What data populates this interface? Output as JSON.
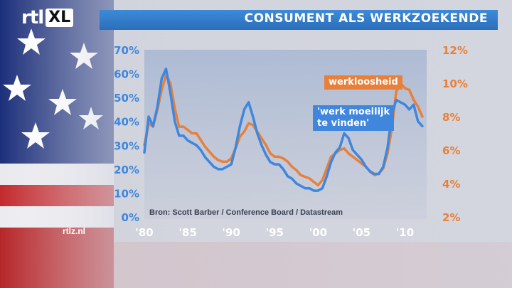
{
  "header": {
    "title": "CONSUMENT ALS WERKZOEKENDE"
  },
  "logo": {
    "rtl": "rtl",
    "xl": "XL"
  },
  "site": "rtlz.nl",
  "chart_data": {
    "type": "line",
    "source": "Bron: Scott Barber / Conference Board / Datastream",
    "x_ticks": [
      "'80",
      "'85",
      "'90",
      "'95",
      "'00",
      "'05",
      "'10"
    ],
    "x_tick_years": [
      1980,
      1985,
      1990,
      1995,
      2000,
      2005,
      2010
    ],
    "xlim": [
      1980,
      2012.5
    ],
    "left_ticks": [
      "0%",
      "10%",
      "20%",
      "30%",
      "40%",
      "50%",
      "60%",
      "70%"
    ],
    "right_ticks": [
      "2%",
      "4%",
      "6%",
      "8%",
      "10%",
      "12%"
    ],
    "ylim_left": [
      0,
      70
    ],
    "ylim_right": [
      2,
      12
    ],
    "grid": false,
    "colors": {
      "orange": "#e8803a",
      "blue": "#3f86dc"
    },
    "series": [
      {
        "name": "werkloosheid",
        "axis": "right",
        "color": "#e8803a",
        "x": [
          1980,
          1980.5,
          1981,
          1981.5,
          1982,
          1982.5,
          1983,
          1983.5,
          1984,
          1984.5,
          1985,
          1985.5,
          1986,
          1986.5,
          1987,
          1987.5,
          1988,
          1988.5,
          1989,
          1989.5,
          1990,
          1990.5,
          1991,
          1991.5,
          1992,
          1992.5,
          1993,
          1993.5,
          1994,
          1994.5,
          1995,
          1995.5,
          1996,
          1996.5,
          1997,
          1997.5,
          1998,
          1998.5,
          1999,
          1999.5,
          2000,
          2000.5,
          2001,
          2001.5,
          2002,
          2002.5,
          2003,
          2003.5,
          2004,
          2004.5,
          2005,
          2005.5,
          2006,
          2006.5,
          2007,
          2007.5,
          2008,
          2008.5,
          2009,
          2009.5,
          2010,
          2010.5,
          2011,
          2011.5,
          2012
        ],
        "values": [
          6.3,
          7.6,
          7.4,
          8.4,
          9.6,
          10.5,
          10.0,
          8.5,
          7.4,
          7.4,
          7.2,
          7.0,
          7.0,
          6.6,
          6.2,
          5.9,
          5.6,
          5.4,
          5.3,
          5.3,
          5.5,
          6.1,
          6.8,
          7.1,
          7.6,
          7.5,
          7.1,
          6.7,
          6.3,
          5.8,
          5.6,
          5.6,
          5.5,
          5.3,
          5.0,
          4.8,
          4.5,
          4.4,
          4.3,
          4.1,
          3.9,
          4.2,
          4.9,
          5.6,
          5.8,
          6.0,
          6.1,
          5.8,
          5.6,
          5.4,
          5.2,
          5.0,
          4.7,
          4.5,
          4.6,
          4.9,
          5.8,
          7.3,
          9.5,
          10.0,
          9.7,
          9.6,
          9.0,
          8.6,
          8.0
        ]
      },
      {
        "name": "'werk moeilijk\nte vinden'",
        "axis": "left",
        "color": "#3f86dc",
        "x": [
          1980,
          1980.5,
          1981,
          1981.5,
          1982,
          1982.5,
          1983,
          1983.5,
          1984,
          1984.5,
          1985,
          1985.5,
          1986,
          1986.5,
          1987,
          1987.5,
          1988,
          1988.5,
          1989,
          1989.5,
          1990,
          1990.5,
          1991,
          1991.5,
          1992,
          1992.5,
          1993,
          1993.5,
          1994,
          1994.5,
          1995,
          1995.5,
          1996,
          1996.5,
          1997,
          1997.5,
          1998,
          1998.5,
          1999,
          1999.5,
          2000,
          2000.5,
          2001,
          2001.5,
          2002,
          2002.5,
          2003,
          2003.5,
          2004,
          2004.5,
          2005,
          2005.5,
          2006,
          2006.5,
          2007,
          2007.5,
          2008,
          2008.5,
          2009,
          2009.5,
          2010,
          2010.5,
          2011,
          2011.5,
          2012
        ],
        "values": [
          27,
          42,
          38,
          46,
          58,
          62,
          52,
          40,
          34,
          34,
          32,
          31,
          30,
          28,
          25,
          23,
          21,
          20,
          20,
          21,
          22,
          29,
          38,
          45,
          48,
          42,
          35,
          30,
          26,
          23,
          22,
          22,
          20,
          17,
          16,
          14,
          13,
          12,
          12,
          11,
          11,
          12,
          17,
          23,
          27,
          29,
          35,
          33,
          28,
          26,
          24,
          21,
          19,
          18,
          18,
          21,
          29,
          43,
          49,
          48,
          47,
          45,
          47,
          40,
          38
        ]
      }
    ]
  }
}
